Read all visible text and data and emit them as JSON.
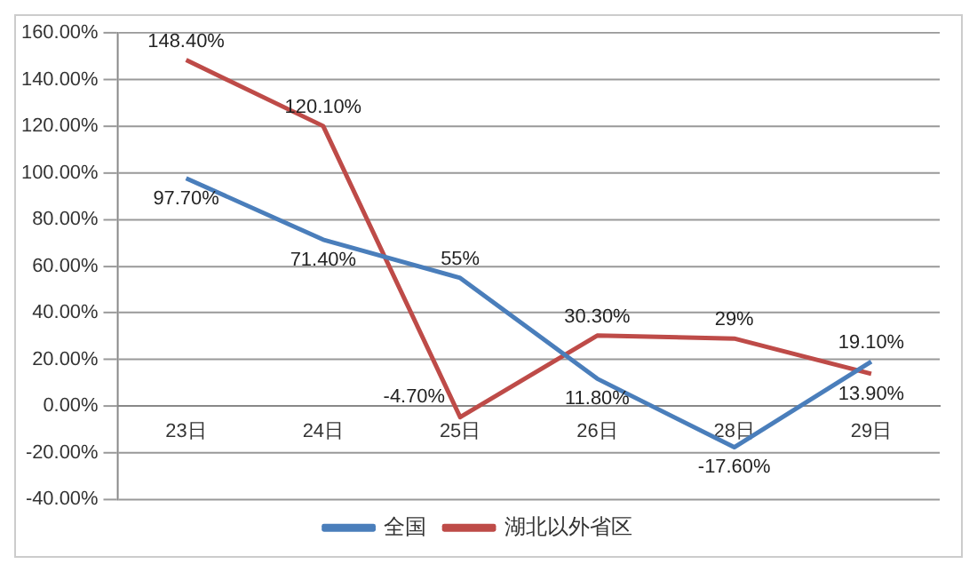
{
  "chart_data": {
    "type": "line",
    "categories": [
      "23日",
      "24日",
      "25日",
      "26日",
      "28日",
      "29日"
    ],
    "series": [
      {
        "name": "全国",
        "color": "#4a7ebb",
        "values": [
          97.7,
          71.4,
          55,
          11.8,
          -17.6,
          19.1
        ],
        "value_labels": [
          "97.70%",
          "71.40%",
          "55%",
          "11.80%",
          "-17.60%",
          "19.10%"
        ]
      },
      {
        "name": "湖北以外省区",
        "color": "#be4b48",
        "values": [
          148.4,
          120.1,
          -4.7,
          30.3,
          29,
          13.9
        ],
        "value_labels": [
          "148.40%",
          "120.10%",
          "-4.70%",
          "30.30%",
          "29%",
          "13.90%"
        ]
      }
    ],
    "ylim": [
      -40,
      160
    ],
    "yticks": [
      {
        "value": -40,
        "label": "-40.00%"
      },
      {
        "value": -20,
        "label": "-20.00%"
      },
      {
        "value": 0,
        "label": "0.00%"
      },
      {
        "value": 20,
        "label": "20.00%"
      },
      {
        "value": 40,
        "label": "40.00%"
      },
      {
        "value": 60,
        "label": "60.00%"
      },
      {
        "value": 80,
        "label": "80.00%"
      },
      {
        "value": 100,
        "label": "100.00%"
      },
      {
        "value": 120,
        "label": "120.00%"
      },
      {
        "value": 140,
        "label": "140.00%"
      },
      {
        "value": 160,
        "label": "160.00%"
      }
    ],
    "grid": "y",
    "legend": "bottom",
    "marker": "none",
    "line_style": "solid"
  }
}
